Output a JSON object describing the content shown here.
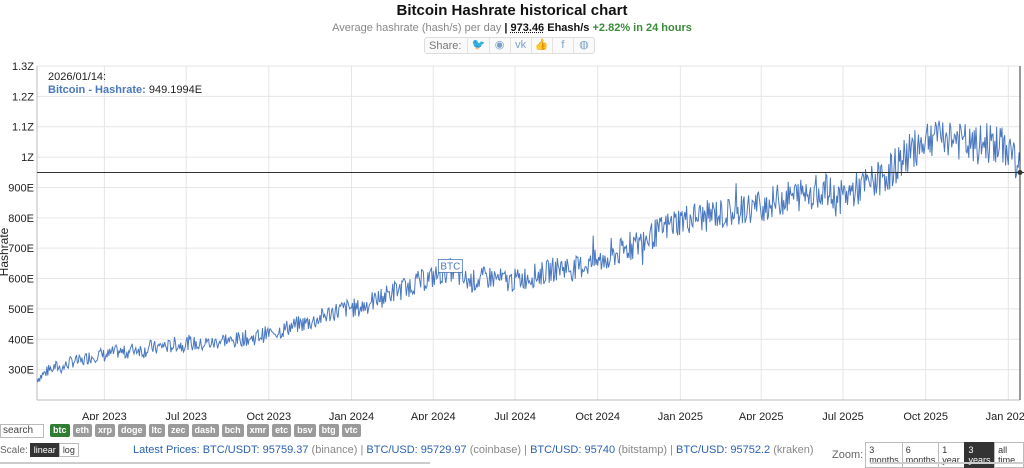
{
  "header": {
    "title": "Bitcoin Hashrate historical chart",
    "subtitle_prefix": "Average hashrate (hash/s) per day",
    "separator": " | ",
    "current_value": "973.46",
    "current_unit": " Ehash/s",
    "change": " +2.82% in 24 hours"
  },
  "share": {
    "label": "Share:",
    "icons": [
      {
        "name": "twitter-icon",
        "glyph": "🐦"
      },
      {
        "name": "reddit-icon",
        "glyph": "◉"
      },
      {
        "name": "vk-icon",
        "glyph": "vk"
      },
      {
        "name": "like-icon",
        "glyph": "👍"
      },
      {
        "name": "facebook-icon",
        "glyph": "f"
      },
      {
        "name": "weibo-icon",
        "glyph": "◍"
      }
    ]
  },
  "tooltip": {
    "date": "2026/01/14:",
    "series_label": "Bitcoin - Hashrate:",
    "value": "949.1994E"
  },
  "controls": {
    "search_placeholder": "search",
    "coins": [
      "btc",
      "eth",
      "xrp",
      "doge",
      "ltc",
      "zec",
      "dash",
      "bch",
      "xmr",
      "etc",
      "bsv",
      "btg",
      "vtc"
    ],
    "active_coin": "btc",
    "scale_label": "Scale:",
    "scale_options": [
      "linear",
      "log"
    ],
    "active_scale": "linear",
    "zoom_label": "Zoom:",
    "zoom_options": [
      "3 months",
      "6 months",
      "1 year",
      "3 years",
      "all time"
    ],
    "active_zoom": "3 years"
  },
  "prices": {
    "prefix": "Latest Prices:",
    "items": [
      {
        "pair": "BTC/USDT: 95759.37",
        "exchange": "(binance)"
      },
      {
        "pair": "BTC/USD: 95729.97",
        "exchange": "(coinbase)"
      },
      {
        "pair": "BTC/USD: 95740",
        "exchange": "(bitstamp)"
      },
      {
        "pair": "BTC/USD: 95752.2",
        "exchange": "(kraken)"
      }
    ]
  },
  "chart_data": {
    "type": "line",
    "ylabel": "Hashrate",
    "series_name": "Bitcoin - Hashrate",
    "color": "#4a78c0",
    "ylim": [
      200,
      1300
    ],
    "y_ticks": [
      300,
      400,
      500,
      600,
      700,
      800,
      900,
      1000,
      1100,
      1200,
      1300
    ],
    "y_tick_labels": [
      "300E",
      "400E",
      "500E",
      "600E",
      "700E",
      "800E",
      "900E",
      "1Z",
      "1.1Z",
      "1.2Z",
      "1.3Z"
    ],
    "x_range": [
      "2023-01-16",
      "2026-01-14"
    ],
    "x_ticks": [
      "2023-04-01",
      "2023-07-01",
      "2023-10-01",
      "2024-01-01",
      "2024-04-01",
      "2024-07-01",
      "2024-10-01",
      "2025-01-01",
      "2025-04-01",
      "2025-07-01",
      "2025-10-01",
      "2026-01-01"
    ],
    "x_tick_labels": [
      "Apr 2023",
      "Jul 2023",
      "Oct 2023",
      "Jan 2024",
      "Apr 2024",
      "Jul 2024",
      "Oct 2024",
      "Jan 2025",
      "Apr 2025",
      "Jul 2025",
      "Oct 2025",
      "Jan 2026"
    ],
    "crosshair_date": "2026-01-14",
    "crosshair_value": 949.1994,
    "annotation": {
      "label": "BTC",
      "date": "2024-04-20",
      "value": 640
    },
    "data": [
      [
        "2023-01-16",
        270
      ],
      [
        "2023-01-23",
        285
      ],
      [
        "2023-01-30",
        300
      ],
      [
        "2023-02-06",
        310
      ],
      [
        "2023-02-13",
        305
      ],
      [
        "2023-02-20",
        320
      ],
      [
        "2023-02-27",
        330
      ],
      [
        "2023-03-06",
        325
      ],
      [
        "2023-03-13",
        340
      ],
      [
        "2023-03-20",
        345
      ],
      [
        "2023-03-27",
        350
      ],
      [
        "2023-04-03",
        345
      ],
      [
        "2023-04-10",
        355
      ],
      [
        "2023-04-17",
        360
      ],
      [
        "2023-04-24",
        355
      ],
      [
        "2023-05-01",
        365
      ],
      [
        "2023-05-08",
        370
      ],
      [
        "2023-05-15",
        360
      ],
      [
        "2023-05-22",
        375
      ],
      [
        "2023-05-29",
        370
      ],
      [
        "2023-06-05",
        380
      ],
      [
        "2023-06-12",
        375
      ],
      [
        "2023-06-19",
        385
      ],
      [
        "2023-06-26",
        380
      ],
      [
        "2023-07-03",
        390
      ],
      [
        "2023-07-10",
        385
      ],
      [
        "2023-07-17",
        380
      ],
      [
        "2023-07-24",
        390
      ],
      [
        "2023-07-31",
        385
      ],
      [
        "2023-08-07",
        395
      ],
      [
        "2023-08-14",
        400
      ],
      [
        "2023-08-21",
        390
      ],
      [
        "2023-08-28",
        400
      ],
      [
        "2023-09-04",
        405
      ],
      [
        "2023-09-11",
        400
      ],
      [
        "2023-09-18",
        410
      ],
      [
        "2023-09-25",
        415
      ],
      [
        "2023-10-02",
        420
      ],
      [
        "2023-10-09",
        425
      ],
      [
        "2023-10-16",
        430
      ],
      [
        "2023-10-23",
        440
      ],
      [
        "2023-10-30",
        445
      ],
      [
        "2023-11-06",
        450
      ],
      [
        "2023-11-13",
        455
      ],
      [
        "2023-11-20",
        460
      ],
      [
        "2023-11-27",
        470
      ],
      [
        "2023-12-04",
        480
      ],
      [
        "2023-12-11",
        490
      ],
      [
        "2023-12-18",
        495
      ],
      [
        "2023-12-25",
        500
      ],
      [
        "2024-01-01",
        505
      ],
      [
        "2024-01-08",
        500
      ],
      [
        "2024-01-15",
        510
      ],
      [
        "2024-01-22",
        520
      ],
      [
        "2024-01-29",
        530
      ],
      [
        "2024-02-05",
        540
      ],
      [
        "2024-02-12",
        550
      ],
      [
        "2024-02-19",
        560
      ],
      [
        "2024-02-26",
        565
      ],
      [
        "2024-03-04",
        575
      ],
      [
        "2024-03-11",
        585
      ],
      [
        "2024-03-18",
        590
      ],
      [
        "2024-03-25",
        600
      ],
      [
        "2024-04-01",
        605
      ],
      [
        "2024-04-08",
        615
      ],
      [
        "2024-04-15",
        625
      ],
      [
        "2024-04-22",
        630
      ],
      [
        "2024-04-29",
        610
      ],
      [
        "2024-05-06",
        595
      ],
      [
        "2024-05-13",
        590
      ],
      [
        "2024-05-20",
        595
      ],
      [
        "2024-05-27",
        600
      ],
      [
        "2024-06-03",
        605
      ],
      [
        "2024-06-10",
        600
      ],
      [
        "2024-06-17",
        595
      ],
      [
        "2024-06-24",
        590
      ],
      [
        "2024-07-01",
        595
      ],
      [
        "2024-07-08",
        600
      ],
      [
        "2024-07-15",
        605
      ],
      [
        "2024-07-22",
        610
      ],
      [
        "2024-07-29",
        615
      ],
      [
        "2024-08-05",
        620
      ],
      [
        "2024-08-12",
        630
      ],
      [
        "2024-08-19",
        635
      ],
      [
        "2024-08-26",
        640
      ],
      [
        "2024-09-02",
        630
      ],
      [
        "2024-09-09",
        635
      ],
      [
        "2024-09-16",
        645
      ],
      [
        "2024-09-23",
        650
      ],
      [
        "2024-09-30",
        655
      ],
      [
        "2024-10-07",
        660
      ],
      [
        "2024-10-14",
        670
      ],
      [
        "2024-10-21",
        680
      ],
      [
        "2024-10-28",
        690
      ],
      [
        "2024-11-04",
        700
      ],
      [
        "2024-11-11",
        710
      ],
      [
        "2024-11-18",
        720
      ],
      [
        "2024-11-25",
        730
      ],
      [
        "2024-12-02",
        745
      ],
      [
        "2024-12-09",
        755
      ],
      [
        "2024-12-16",
        770
      ],
      [
        "2024-12-23",
        780
      ],
      [
        "2024-12-30",
        790
      ],
      [
        "2025-01-06",
        795
      ],
      [
        "2025-01-13",
        800
      ],
      [
        "2025-01-20",
        805
      ],
      [
        "2025-01-27",
        800
      ],
      [
        "2025-02-03",
        810
      ],
      [
        "2025-02-10",
        815
      ],
      [
        "2025-02-17",
        810
      ],
      [
        "2025-02-24",
        815
      ],
      [
        "2025-03-03",
        820
      ],
      [
        "2025-03-10",
        825
      ],
      [
        "2025-03-17",
        830
      ],
      [
        "2025-03-24",
        835
      ],
      [
        "2025-03-31",
        840
      ],
      [
        "2025-04-07",
        845
      ],
      [
        "2025-04-14",
        850
      ],
      [
        "2025-04-21",
        860
      ],
      [
        "2025-04-28",
        865
      ],
      [
        "2025-05-05",
        870
      ],
      [
        "2025-05-12",
        875
      ],
      [
        "2025-05-19",
        880
      ],
      [
        "2025-05-26",
        885
      ],
      [
        "2025-06-02",
        890
      ],
      [
        "2025-06-09",
        895
      ],
      [
        "2025-06-16",
        880
      ],
      [
        "2025-06-23",
        860
      ],
      [
        "2025-06-30",
        870
      ],
      [
        "2025-07-07",
        880
      ],
      [
        "2025-07-14",
        890
      ],
      [
        "2025-07-21",
        900
      ],
      [
        "2025-07-28",
        910
      ],
      [
        "2025-08-04",
        920
      ],
      [
        "2025-08-11",
        930
      ],
      [
        "2025-08-18",
        945
      ],
      [
        "2025-08-25",
        960
      ],
      [
        "2025-09-01",
        980
      ],
      [
        "2025-09-08",
        1000
      ],
      [
        "2025-09-15",
        1020
      ],
      [
        "2025-09-22",
        1040
      ],
      [
        "2025-09-29",
        1060
      ],
      [
        "2025-10-06",
        1070
      ],
      [
        "2025-10-13",
        1075
      ],
      [
        "2025-10-20",
        1080
      ],
      [
        "2025-10-27",
        1070
      ],
      [
        "2025-11-03",
        1060
      ],
      [
        "2025-11-10",
        1050
      ],
      [
        "2025-11-17",
        1040
      ],
      [
        "2025-11-24",
        1030
      ],
      [
        "2025-12-01",
        1040
      ],
      [
        "2025-12-08",
        1050
      ],
      [
        "2025-12-15",
        1045
      ],
      [
        "2025-12-22",
        1035
      ],
      [
        "2025-12-29",
        1030
      ],
      [
        "2026-01-05",
        1020
      ],
      [
        "2026-01-14",
        949
      ]
    ]
  }
}
